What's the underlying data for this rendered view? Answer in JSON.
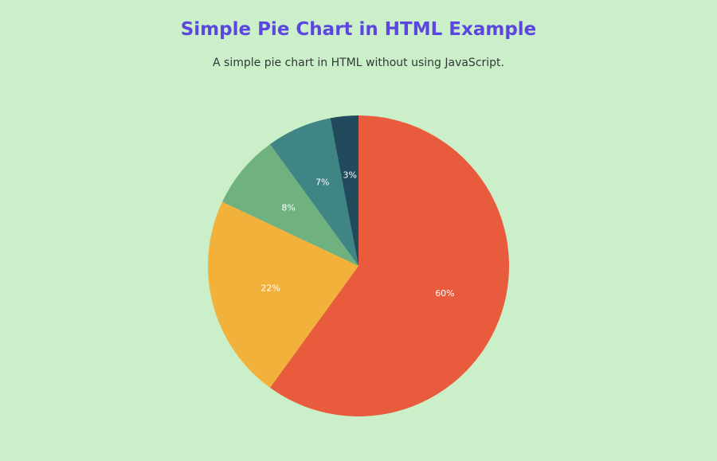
{
  "header": {
    "title": "Simple Pie Chart in HTML Example",
    "subtitle": "A simple pie chart in HTML without using JavaScript."
  },
  "chart_data": {
    "type": "pie",
    "title": "",
    "start_angle_deg": 0,
    "direction": "clockwise",
    "slices": [
      {
        "label": "60%",
        "value": 60,
        "color": "#e95b3d"
      },
      {
        "label": "22%",
        "value": 22,
        "color": "#f2b13b"
      },
      {
        "label": "8%",
        "value": 8,
        "color": "#6fb27f"
      },
      {
        "label": "7%",
        "value": 7,
        "color": "#3f8585"
      },
      {
        "label": "3%",
        "value": 3,
        "color": "#214b5c"
      }
    ]
  }
}
